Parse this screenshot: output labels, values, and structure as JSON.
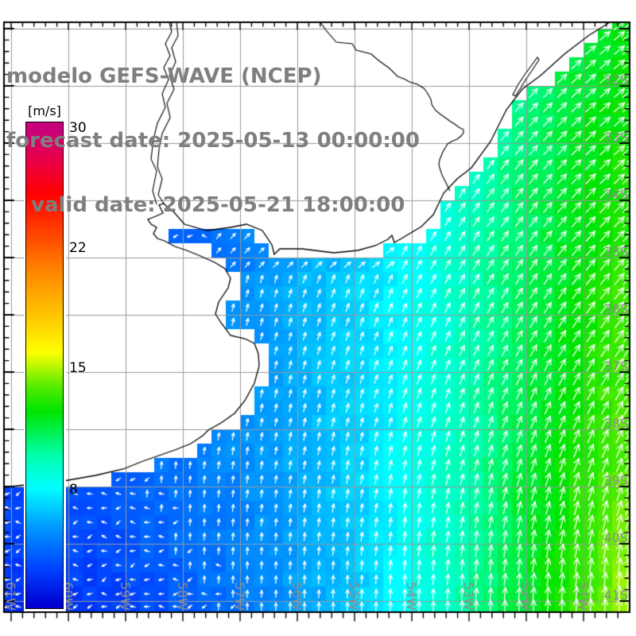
{
  "title": {
    "line1": "modelo GEFS-WAVE (NCEP)",
    "line2": "forecast date: 2025-05-13 00:00:00",
    "line3": "valid date: 2025-05-21 18:00:00"
  },
  "colorbar": {
    "unit": "[m/s]",
    "tick_labels": [
      "30",
      "22",
      "15",
      "8"
    ],
    "stops": [
      [
        0.8,
        "#0000d2"
      ],
      [
        3,
        "#0041ff"
      ],
      [
        5.5,
        "#0096ff"
      ],
      [
        8,
        "#00ffff"
      ],
      [
        10,
        "#00ffaa"
      ],
      [
        12.7,
        "#00e400"
      ],
      [
        14.2,
        "#54ec00"
      ],
      [
        16.3,
        "#ffff00"
      ],
      [
        18,
        "#ffd200"
      ],
      [
        21,
        "#ff8c00"
      ],
      [
        23.5,
        "#ff4600"
      ],
      [
        26,
        "#ff0000"
      ],
      [
        28,
        "#ea0045"
      ],
      [
        30,
        "#c8007c"
      ]
    ],
    "vmin": 0.6,
    "vmax": 30.4
  },
  "axes": {
    "lat_labels": [
      "32S",
      "33S",
      "34S",
      "35S",
      "36S",
      "37S",
      "38S",
      "39S",
      "40S",
      "41S"
    ],
    "lon_labels": [
      "61W",
      "60W",
      "59W",
      "58W",
      "57W",
      "56W",
      "55W",
      "54W",
      "53W",
      "52W",
      "51W"
    ]
  },
  "map_info": {
    "type": "heatmap-with-vectors",
    "variable": "wind speed",
    "units": "m/s",
    "region": "Rio de la Plata / SW Atlantic (Argentina-Uruguay-S.Brazil coast)",
    "field_min_shown": 3,
    "field_max_shown": 15.5,
    "gradient_description": "low (dark blue ~3 m/s) near SW coast and inner estuary, increasing SE/E to yellow ~15 m/s at SE corner",
    "arrow_meaning": "wind direction, mostly N to NE over open ocean, weak/variable in SW corner",
    "grid_color": "#999999",
    "coast_color": "#000000",
    "land_color": "#ffffff",
    "label_color": "#8c8c8c",
    "title_color": "#7f7f7f"
  }
}
